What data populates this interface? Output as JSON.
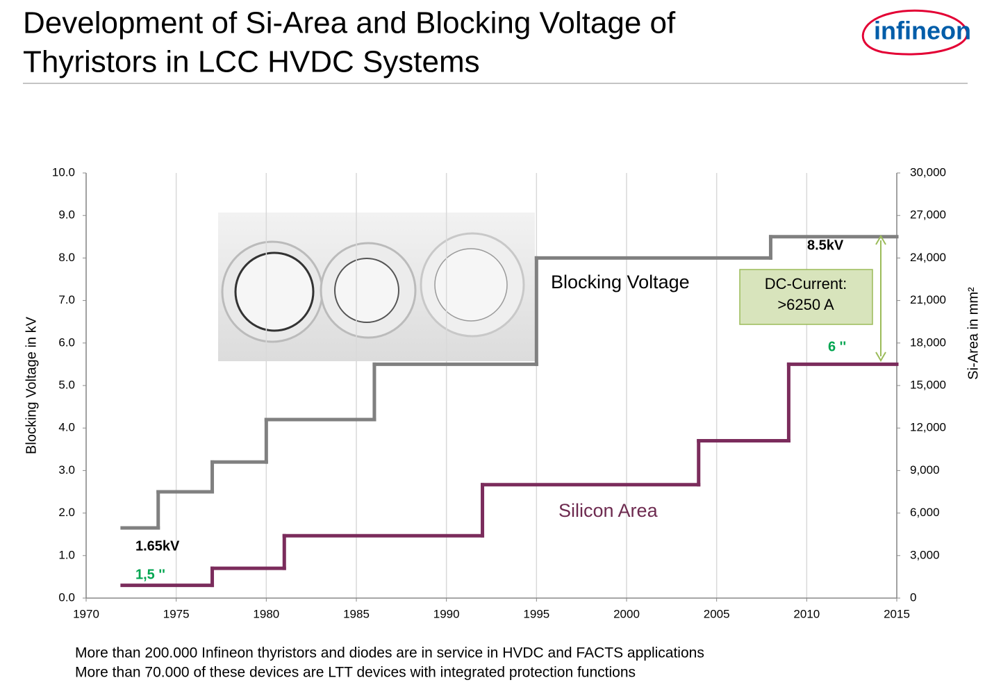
{
  "header": {
    "title": [
      "Development of Si-Area and Blocking Voltage of",
      "Thyristors in LCC HVDC Systems"
    ],
    "logo": "infineon"
  },
  "chart_data": {
    "type": "step",
    "xlim": [
      1970,
      2015
    ],
    "xticks": [
      1970,
      1975,
      1980,
      1985,
      1990,
      1995,
      2000,
      2005,
      2010,
      2015
    ],
    "ylim": [
      0,
      10
    ],
    "yticks": [
      {
        "value": 0,
        "label": "0.0"
      },
      {
        "value": 1,
        "label": "1.0"
      },
      {
        "value": 2,
        "label": "2.0"
      },
      {
        "value": 3,
        "label": "3.0"
      },
      {
        "value": 4,
        "label": "4.0"
      },
      {
        "value": 5,
        "label": "5.0"
      },
      {
        "value": 6,
        "label": "6.0"
      },
      {
        "value": 7,
        "label": "7.0"
      },
      {
        "value": 8,
        "label": "8.0"
      },
      {
        "value": 9,
        "label": "9.0"
      },
      {
        "value": 10,
        "label": "10.0"
      }
    ],
    "y2lim": [
      0,
      30000
    ],
    "y2ticks": [
      0,
      {
        "value": 3000,
        "label": "3,000"
      },
      {
        "value": 6000,
        "label": "6,000"
      },
      {
        "value": 9000,
        "label": "9,000"
      },
      {
        "value": 12000,
        "label": "12,000"
      },
      {
        "value": 15000,
        "label": "15,000"
      },
      {
        "value": 18000,
        "label": "18,000"
      },
      {
        "value": 21000,
        "label": "21,000"
      },
      {
        "value": 24000,
        "label": "24,000"
      },
      {
        "value": 27000,
        "label": "27,000"
      },
      {
        "value": 30000,
        "label": "30,000"
      }
    ],
    "ylabel": "Blocking Voltage in kV",
    "y2label": "Si-Area in mm²",
    "grid": "x",
    "series": [
      {
        "name": "Blocking Voltage",
        "color": "#808080",
        "x": [
          1972,
          1974,
          1977,
          1980,
          1986,
          1995,
          2008
        ],
        "values": [
          1.65,
          2.5,
          3.2,
          4.2,
          5.5,
          8.0,
          8.5
        ]
      },
      {
        "name": "Silicon Area",
        "color": "#7b2c5c",
        "axis": "y2",
        "x": [
          1972,
          1977,
          1981,
          1992,
          2004,
          2009
        ],
        "values": [
          900,
          2100,
          4400,
          8000,
          11100,
          16500
        ]
      }
    ],
    "annotations": [
      {
        "text": "1.65kV",
        "color": "#000000"
      },
      {
        "text": "1,5 ''",
        "color": "#00a550"
      },
      {
        "text": "8.5kV",
        "color": "#000000"
      },
      {
        "text": "6 ''",
        "color": "#00a550"
      },
      {
        "text": [
          "DC-Current:",
          ">6250 A"
        ],
        "color": "#000000"
      }
    ]
  },
  "footer": [
    "More than 200.000 Infineon thyristors and diodes are in service in HVDC and FACTS applications",
    "More than 70.000 of these devices are LTT devices with integrated protection functions"
  ]
}
